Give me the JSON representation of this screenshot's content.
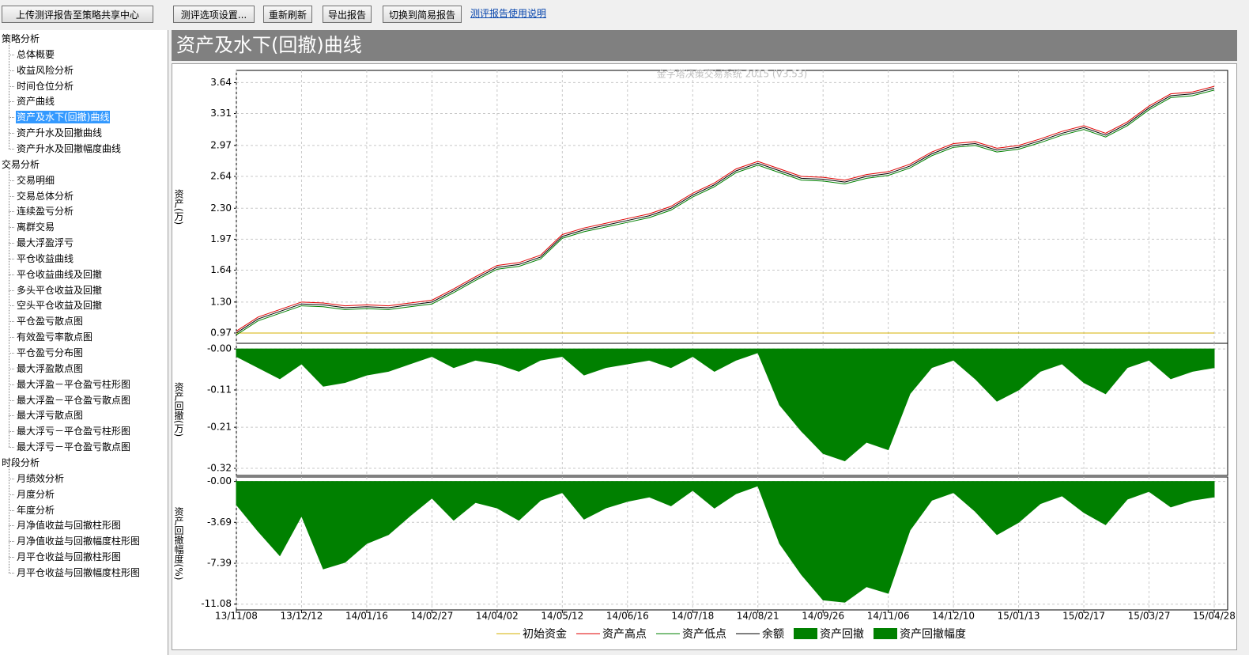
{
  "toolbar": {
    "buttons": [
      "上传测评报告至策略共享中心",
      "测评选项设置...",
      "重新刷新",
      "导出报告",
      "切换到简易报告"
    ],
    "link": "测评报告使用说明"
  },
  "nav": {
    "sections": [
      {
        "label": "策略分析",
        "selected_index": 4,
        "items": [
          "总体概要",
          "收益风险分析",
          "时间仓位分析",
          "资产曲线",
          "资产及水下(回撤)曲线",
          "资产升水及回撤曲线",
          "资产升水及回撤幅度曲线"
        ]
      },
      {
        "label": "交易分析",
        "items": [
          "交易明细",
          "交易总体分析",
          "连续盈亏分析",
          "离群交易",
          "最大浮盈浮亏",
          "平仓收益曲线",
          "平仓收益曲线及回撤",
          "多头平仓收益及回撤",
          "空头平仓收益及回撤",
          "平仓盈亏散点图",
          "有效盈亏率散点图",
          "平仓盈亏分布图",
          "最大浮盈散点图",
          "最大浮盈－平仓盈亏柱形图",
          "最大浮盈－平仓盈亏散点图",
          "最大浮亏散点图",
          "最大浮亏－平仓盈亏柱形图",
          "最大浮亏－平仓盈亏散点图"
        ]
      },
      {
        "label": "时段分析",
        "items": [
          "月绩效分析",
          "月度分析",
          "年度分析",
          "月净值收益与回撤柱形图",
          "月净值收益与回撤幅度柱形图",
          "月平仓收益与回撤柱形图",
          "月平仓收益与回撤幅度柱形图"
        ]
      }
    ]
  },
  "header": {
    "title": "资产及水下(回撤)曲线"
  },
  "chart_data": [
    {
      "type": "line",
      "title": "金字塔决策交易系统 2015 (V3.53)",
      "y_label": "资产(万)",
      "grid": true,
      "ylim": [
        0.86,
        3.77
      ],
      "yticks": [
        0.97,
        {
          "value": 1.3,
          "label": "1.30"
        },
        1.64,
        1.97,
        {
          "value": 2.3,
          "label": "2.30"
        },
        2.64,
        2.97,
        3.31,
        3.64
      ],
      "series": [
        {
          "name": "初始资金",
          "color": "#d4b000",
          "values": [
            0.97,
            0.97,
            0.97,
            0.97,
            0.97,
            0.97,
            0.97,
            0.97,
            0.97,
            0.97,
            0.97,
            0.97,
            0.97,
            0.97,
            0.97,
            0.97,
            0.97,
            0.97,
            0.97,
            0.97,
            0.97,
            0.97,
            0.97,
            0.97,
            0.97,
            0.97,
            0.97,
            0.97,
            0.97,
            0.97,
            0.97,
            0.97,
            0.97,
            0.97,
            0.97,
            0.97,
            0.97,
            0.97,
            0.97,
            0.97,
            0.97,
            0.97,
            0.97,
            0.97,
            0.97,
            0.97
          ]
        },
        {
          "name": "资产高点",
          "color": "#e00000",
          "values": [
            0.99,
            1.14,
            1.22,
            1.3,
            1.29,
            1.26,
            1.27,
            1.26,
            1.29,
            1.32,
            1.44,
            1.57,
            1.69,
            1.72,
            1.8,
            2.02,
            2.09,
            2.14,
            2.19,
            2.24,
            2.32,
            2.46,
            2.57,
            2.72,
            2.8,
            2.72,
            2.64,
            2.63,
            2.6,
            2.66,
            2.69,
            2.77,
            2.9,
            2.99,
            3.01,
            2.94,
            2.97,
            3.04,
            3.12,
            3.18,
            3.1,
            3.22,
            3.39,
            3.52,
            3.54,
            3.6
          ]
        },
        {
          "name": "资产低点",
          "color": "#008000",
          "values": [
            0.95,
            1.1,
            1.18,
            1.26,
            1.25,
            1.22,
            1.23,
            1.22,
            1.25,
            1.28,
            1.4,
            1.53,
            1.65,
            1.68,
            1.76,
            1.98,
            2.05,
            2.1,
            2.15,
            2.2,
            2.28,
            2.42,
            2.53,
            2.68,
            2.76,
            2.68,
            2.6,
            2.59,
            2.56,
            2.62,
            2.65,
            2.73,
            2.86,
            2.95,
            2.97,
            2.9,
            2.93,
            3.0,
            3.08,
            3.14,
            3.06,
            3.18,
            3.35,
            3.48,
            3.5,
            3.56
          ]
        },
        {
          "name": "余额",
          "color": "#000000",
          "values": [
            0.97,
            1.12,
            1.2,
            1.28,
            1.27,
            1.24,
            1.25,
            1.24,
            1.27,
            1.3,
            1.42,
            1.55,
            1.67,
            1.7,
            1.78,
            2.0,
            2.07,
            2.12,
            2.17,
            2.22,
            2.3,
            2.44,
            2.55,
            2.7,
            2.78,
            2.7,
            2.62,
            2.61,
            2.58,
            2.64,
            2.67,
            2.75,
            2.88,
            2.97,
            2.99,
            2.92,
            2.95,
            3.02,
            3.1,
            3.16,
            3.08,
            3.2,
            3.37,
            3.5,
            3.52,
            3.58
          ]
        }
      ]
    },
    {
      "type": "area",
      "y_label": "资产回撤(万)",
      "grid": true,
      "ylim": [
        -0.339,
        0.015
      ],
      "yticks": [
        {
          "value": 0,
          "label": "-0.00"
        },
        -0.11,
        -0.21,
        -0.32
      ],
      "series": [
        {
          "name": "资产回撤",
          "color": "#008000",
          "values": [
            -0.02,
            -0.05,
            -0.08,
            -0.04,
            -0.1,
            -0.09,
            -0.07,
            -0.06,
            -0.04,
            -0.02,
            -0.05,
            -0.03,
            -0.04,
            -0.06,
            -0.03,
            -0.02,
            -0.07,
            -0.05,
            -0.04,
            -0.03,
            -0.05,
            -0.02,
            -0.06,
            -0.03,
            -0.01,
            -0.15,
            -0.22,
            -0.28,
            -0.3,
            -0.25,
            -0.27,
            -0.12,
            -0.05,
            -0.03,
            -0.08,
            -0.14,
            -0.11,
            -0.06,
            -0.04,
            -0.09,
            -0.12,
            -0.05,
            -0.03,
            -0.08,
            -0.06,
            -0.05
          ]
        }
      ]
    },
    {
      "type": "area",
      "y_label": "资产回撤幅度(%)",
      "grid": true,
      "ylim": [
        -11.6,
        0.4
      ],
      "yticks": [
        {
          "value": 0,
          "label": "-0.00"
        },
        -3.69,
        -7.39,
        -11.08
      ],
      "categories": [
        "13/11/08",
        null,
        null,
        "13/12/12",
        null,
        null,
        "14/01/16",
        null,
        null,
        "14/02/27",
        null,
        null,
        "14/04/02",
        null,
        null,
        "14/05/12",
        null,
        null,
        "14/06/16",
        null,
        null,
        "14/07/18",
        null,
        null,
        "14/08/21",
        null,
        null,
        "14/09/26",
        null,
        null,
        "14/11/06",
        null,
        null,
        "14/12/10",
        null,
        null,
        "15/01/13",
        null,
        null,
        "15/02/17",
        null,
        null,
        "15/03/27",
        null,
        null,
        "15/04/28"
      ],
      "series": [
        {
          "name": "资产回撤幅度",
          "color": "#008000",
          "values": [
            -2.1,
            -4.5,
            -6.7,
            -3.1,
            -7.9,
            -7.3,
            -5.6,
            -4.8,
            -3.1,
            -1.5,
            -3.5,
            -1.9,
            -2.4,
            -3.5,
            -1.7,
            -1.0,
            -3.4,
            -2.4,
            -1.8,
            -1.4,
            -2.2,
            -0.8,
            -2.4,
            -1.1,
            -0.4,
            -5.6,
            -8.4,
            -10.7,
            -10.9,
            -9.5,
            -10.1,
            -4.4,
            -1.7,
            -1.0,
            -2.7,
            -4.8,
            -3.7,
            -2.0,
            -1.3,
            -2.8,
            -3.9,
            -1.6,
            -0.9,
            -2.3,
            -1.7,
            -1.4
          ]
        }
      ]
    }
  ]
}
